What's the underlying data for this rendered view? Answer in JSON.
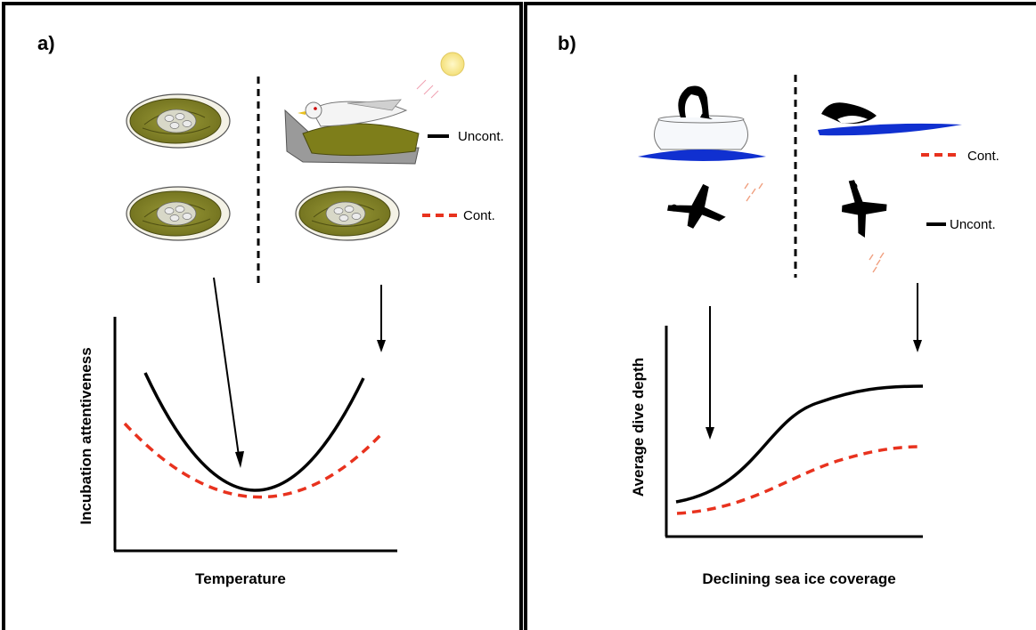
{
  "panels": [
    {
      "label": "a)",
      "legend": {
        "uncont": "Uncont.",
        "cont": "Cont."
      },
      "xlabel": "Temperature",
      "ylabel": "Incubation attentiveness",
      "icons": [
        "nest-icon",
        "gull-on-nest-icon",
        "sun-icon"
      ]
    },
    {
      "label": "b)",
      "legend": {
        "cont": "Cont.",
        "uncont": "Uncont."
      },
      "xlabel": "Declining sea ice coverage",
      "ylabel": "Average dive depth",
      "icons": [
        "seabird-on-ice-icon",
        "diving-seabird-icon",
        "bubbles-icon"
      ]
    }
  ],
  "colors": {
    "uncont": "#000000",
    "cont": "#e8321e",
    "nest_fill": "#8a8a2a",
    "ice_water": "#1030d0"
  }
}
